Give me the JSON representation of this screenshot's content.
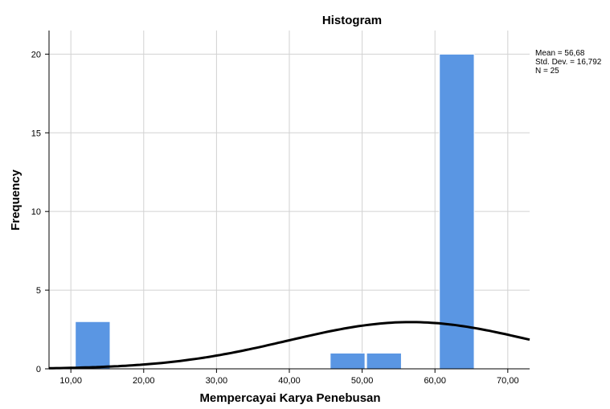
{
  "chart_data": {
    "type": "bar",
    "title": "Histogram",
    "xlabel": "Mempercayai Karya Penebusan",
    "ylabel": "Frequency",
    "xlim": [
      7,
      73
    ],
    "ylim": [
      0,
      21.5
    ],
    "x_ticks": [
      "10,00",
      "20,00",
      "30,00",
      "40,00",
      "50,00",
      "60,00",
      "70,00"
    ],
    "y_ticks": [
      "0",
      "5",
      "10",
      "15",
      "20"
    ],
    "bins": [
      {
        "start": 10.5,
        "end": 15.5,
        "frequency": 3
      },
      {
        "start": 45.5,
        "end": 50.5,
        "frequency": 1
      },
      {
        "start": 50.5,
        "end": 55.5,
        "frequency": 1
      },
      {
        "start": 60.5,
        "end": 65.5,
        "frequency": 20
      }
    ],
    "normal_curve": {
      "mean": 56.68,
      "std_dev": 16.792,
      "n": 25,
      "bin_width": 5
    },
    "stats": {
      "mean": "Mean = 56,68",
      "std_dev": "Std. Dev. = 16,792",
      "n": "N = 25"
    },
    "grid": true,
    "colors": {
      "bar": "#5a96e3",
      "bar_edge": "#ffffff",
      "grid": "#d2d2d2",
      "curve": "#000000",
      "axis": "#000000"
    }
  }
}
